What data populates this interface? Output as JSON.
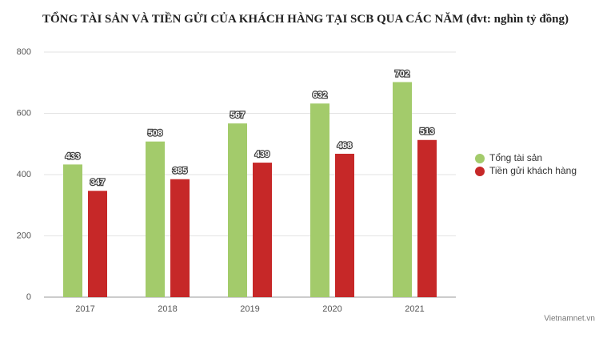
{
  "chart_data": {
    "type": "bar",
    "title": "TỔNG TÀI SẢN VÀ TIỀN GỬI CỦA KHÁCH HÀNG TẠI SCB QUA CÁC NĂM (đvt: nghìn tỷ đồng)",
    "categories": [
      "2017",
      "2018",
      "2019",
      "2020",
      "2021"
    ],
    "series": [
      {
        "name": "Tổng tài sản",
        "color": "#a3cb6b",
        "values": [
          433,
          508,
          567,
          632,
          702
        ]
      },
      {
        "name": "Tiền gửi khách hàng",
        "color": "#c62828",
        "values": [
          347,
          385,
          439,
          468,
          513
        ]
      }
    ],
    "ylim": [
      0,
      800
    ],
    "yticks": [
      0,
      200,
      400,
      600,
      800
    ],
    "grid": true,
    "legend": "right",
    "credit": "Vietnamnet.vn"
  }
}
